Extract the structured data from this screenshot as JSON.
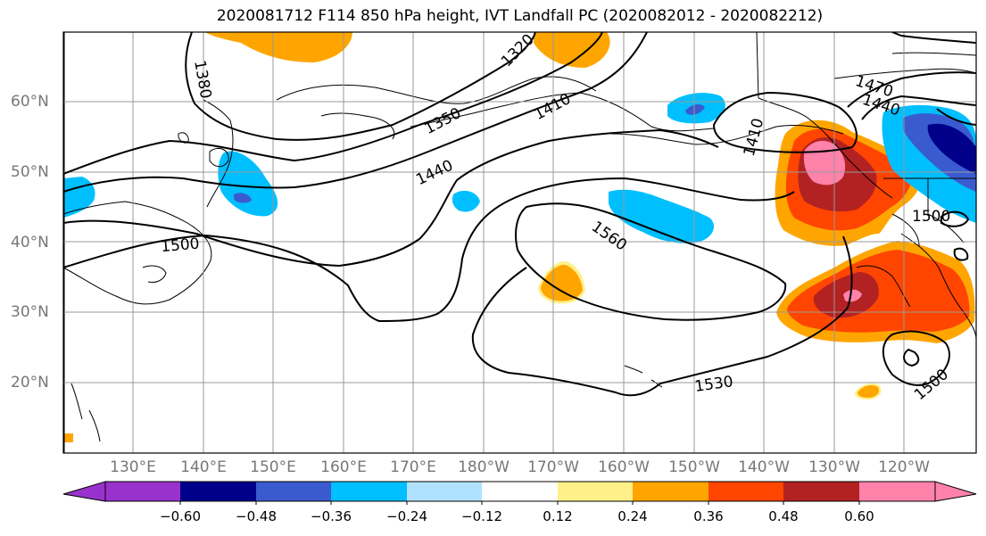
{
  "title": "2020081712 F114 850 hPa height, IVT Landfall PC (2020082012 - 2020082212)",
  "lat_labels": [
    "60°N",
    "50°N",
    "40°N",
    "30°N",
    "20°N"
  ],
  "lon_labels": [
    "130°E",
    "140°E",
    "150°E",
    "160°E",
    "170°E",
    "180°W",
    "170°W",
    "160°W",
    "150°W",
    "140°W",
    "130°W",
    "120°W"
  ],
  "contour_labels": [
    "1380",
    "1320",
    "1350",
    "1410",
    "1440",
    "1500",
    "1560",
    "1530",
    "1410",
    "1470",
    "1440",
    "1500",
    "1500"
  ],
  "colorbar": {
    "colors": [
      "#9932cc",
      "#00008b",
      "#3a5bcf",
      "#00bfff",
      "#b0e2ff",
      "#ffffff",
      "#fff08a",
      "#ffa500",
      "#ff4500",
      "#b22222",
      "#ff82ab"
    ],
    "tick_labels": [
      "−0.60",
      "−0.48",
      "−0.36",
      "−0.24",
      "−0.12",
      "0.12",
      "0.24",
      "0.36",
      "0.48",
      "0.60"
    ]
  }
}
